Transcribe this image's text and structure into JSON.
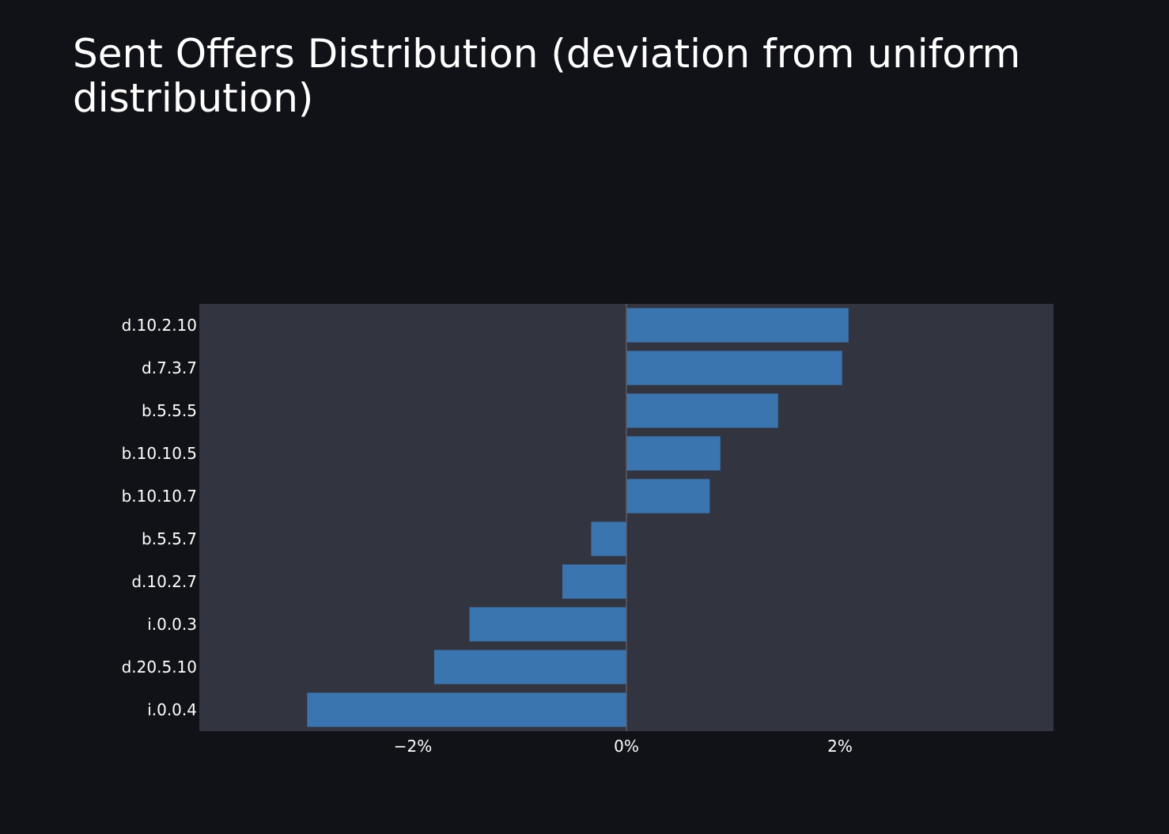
{
  "chart_data": {
    "type": "bar",
    "orientation": "horizontal",
    "title": "Sent Offers Distribution (deviation from uniform distribution)",
    "xlabel": "",
    "ylabel": "",
    "categories": [
      "d.10.2.10",
      "d.7.3.7",
      "b.5.5.5",
      "b.10.10.5",
      "b.10.10.7",
      "b.5.5.7",
      "d.10.2.7",
      "i.0.0.3",
      "d.20.5.10",
      "i.0.0.4"
    ],
    "values": [
      2.08,
      2.02,
      1.42,
      0.88,
      0.78,
      -0.33,
      -0.6,
      -1.47,
      -1.8,
      -2.99
    ],
    "value_unit": "%",
    "xlim": [
      -4,
      4
    ],
    "xticks": [
      -2,
      0,
      2
    ],
    "xtick_labels": [
      "−2%",
      "0%",
      "2%"
    ],
    "grid": false,
    "legend": "none",
    "colors": {
      "background": "#111217",
      "plot_background": "#32343F",
      "bar": "#3B75AF",
      "zero_line": "#5A5D6B",
      "text": "#ffffff"
    }
  }
}
